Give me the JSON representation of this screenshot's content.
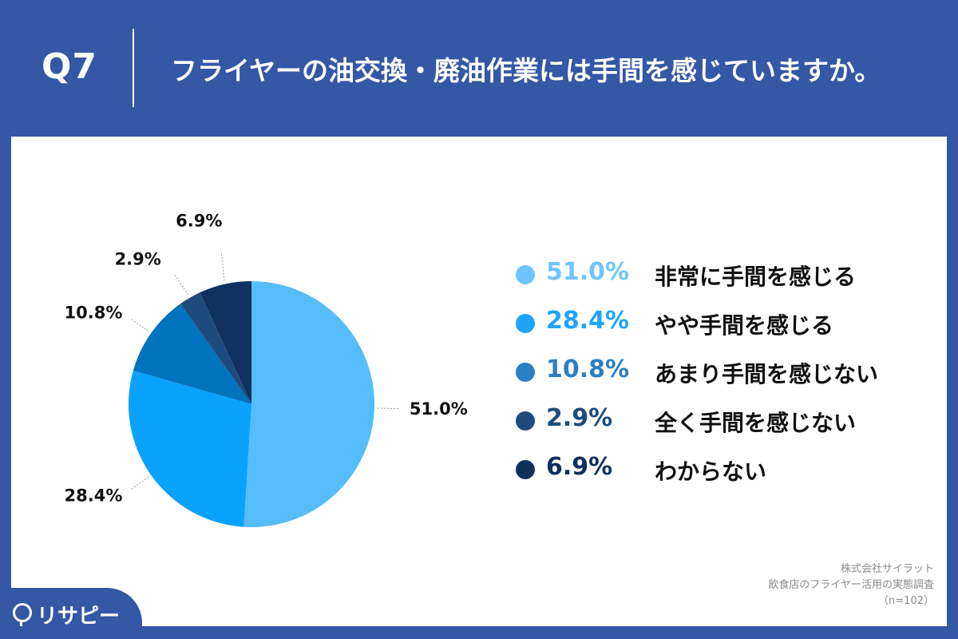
{
  "header": {
    "question_number": "Q7",
    "title": "フライヤーの油交換・廃油作業には手間を感じていますか。"
  },
  "chart_data": {
    "type": "pie",
    "categories": [
      "非常に手間を感じる",
      "やや手間を感じる",
      "あまり手間を感じない",
      "全く手間を感じない",
      "わからない"
    ],
    "values": [
      51.0,
      28.4,
      10.8,
      2.9,
      6.9
    ],
    "value_labels": [
      "51.0%",
      "28.4%",
      "10.8%",
      "2.9%",
      "6.9%"
    ],
    "colors": [
      "#55bdfb",
      "#0aa2ff",
      "#0073bf",
      "#1d4b7e",
      "#0f3261"
    ],
    "legend_value_colors": [
      "#6ec5ff",
      "#1ea4ff",
      "#2c7fc3",
      "#1e4b7e",
      "#10305c"
    ],
    "start_angle_deg": 0,
    "direction": "clockwise",
    "legend_placement": "right"
  },
  "source": {
    "line1": "株式会社サイラット",
    "line2": "飲食店のフライヤー活用の実態調査",
    "line3": "（n=102）"
  },
  "logo": {
    "text": "リサピー"
  }
}
